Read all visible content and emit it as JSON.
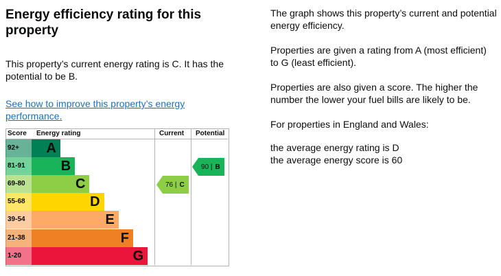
{
  "left": {
    "title": "Energy efficiency rating for this property",
    "rating_text": "This property’s current energy rating is C. It has the potential to be B.",
    "improve_link": "See how to improve this property’s energy performance."
  },
  "right": {
    "p1": "The graph shows this property’s current and potential energy efficiency.",
    "p2": "Properties are given a rating from A (most efficient) to G (least efficient).",
    "p3": "Properties are also given a score. The higher the number the lower your fuel bills are likely to be.",
    "p4": "For properties in England and Wales:",
    "p5": "the average energy rating is D",
    "p6": "the average energy score is 60"
  },
  "chart_data": {
    "type": "bar",
    "headers": {
      "score": "Score",
      "rating": "Energy rating",
      "current": "Current",
      "potential": "Potential"
    },
    "bands": [
      {
        "range": "92+",
        "letter": "A",
        "color": "#008054",
        "level": 1
      },
      {
        "range": "81-91",
        "letter": "B",
        "color": "#19b459",
        "level": 2
      },
      {
        "range": "69-80",
        "letter": "C",
        "color": "#8dce46",
        "level": 3
      },
      {
        "range": "55-68",
        "letter": "D",
        "color": "#ffd500",
        "level": 4
      },
      {
        "range": "39-54",
        "letter": "E",
        "color": "#fcaa65",
        "level": 5
      },
      {
        "range": "21-38",
        "letter": "F",
        "color": "#ef8023",
        "level": 6
      },
      {
        "range": "1-20",
        "letter": "G",
        "color": "#e9153b",
        "level": 7
      }
    ],
    "current": {
      "score": "76",
      "sep": "|",
      "letter": "C",
      "color": "#8dce46"
    },
    "potential": {
      "score": "90",
      "sep": "|",
      "letter": "B",
      "color": "#19b459"
    }
  }
}
